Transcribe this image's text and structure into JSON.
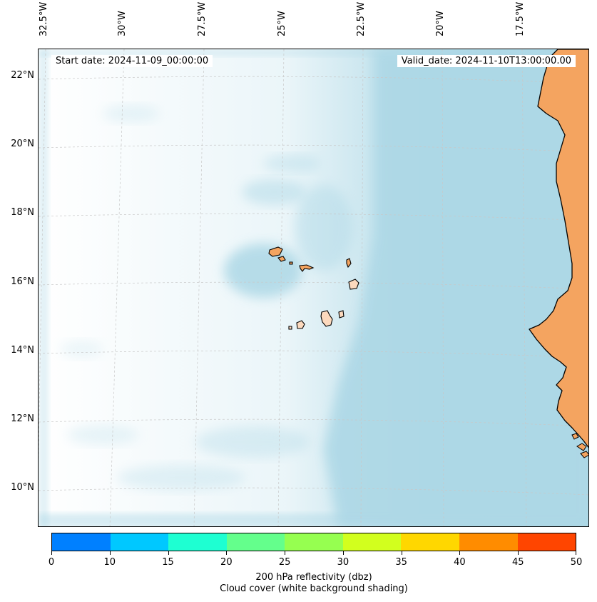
{
  "map": {
    "start_date": "Start date: 2024-11-09_00:00:00",
    "valid_date": "Valid_date: 2024-11-10T13:00:00.00",
    "lon_ticks": [
      "32.5°W",
      "30°W",
      "27.5°W",
      "25°W",
      "22.5°W",
      "20°W",
      "17.5°W"
    ],
    "lat_ticks": [
      "22°N",
      "20°N",
      "18°N",
      "16°N",
      "14°N",
      "12°N",
      "10°N"
    ],
    "colors": {
      "land": "#f4a460",
      "island": "#fcd9bd",
      "cloud": "#add8e6",
      "coast": "#000000"
    }
  },
  "colorbar": {
    "colors": [
      "#0080ff",
      "#00c8ff",
      "#1effd2",
      "#64ff8c",
      "#96ff50",
      "#d2ff1e",
      "#ffd700",
      "#ff8c00",
      "#ff4500"
    ],
    "ticks": [
      "0",
      "10",
      "15",
      "20",
      "25",
      "30",
      "35",
      "40",
      "45",
      "50"
    ],
    "label_line1": "200 hPa reflectivity (dbz)",
    "label_line2": "Cloud cover (white background shading)"
  }
}
